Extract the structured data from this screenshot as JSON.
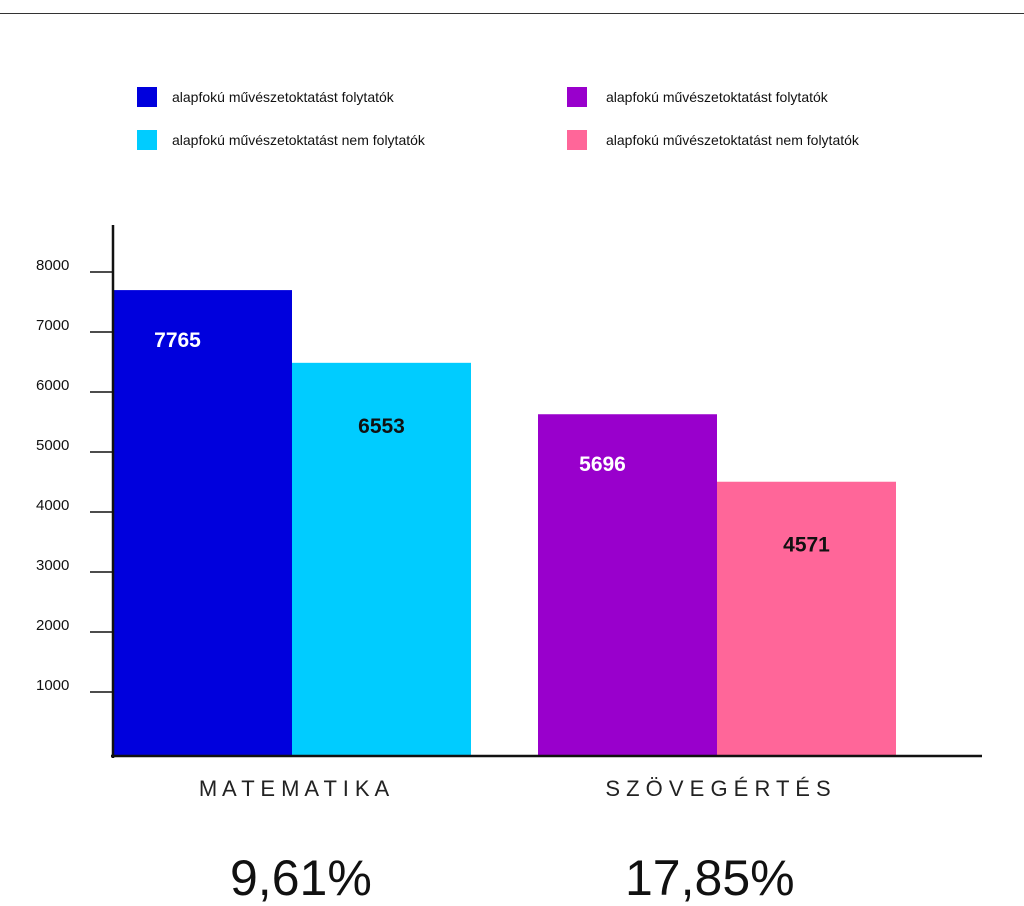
{
  "chart_data": {
    "type": "bar",
    "ylim": [
      0,
      8000
    ],
    "yticks": [
      "1000",
      "2000",
      "3000",
      "4000",
      "5000",
      "6000",
      "7000",
      "8000"
    ],
    "groups": [
      {
        "category": "M A T E M A T I K A",
        "share": "9,61%",
        "bars": [
          {
            "label": "alapfokú művészetoktatást folytatók",
            "value": 7765,
            "display": "7765",
            "color": "#0000dd",
            "text_color": "#ffffff"
          },
          {
            "label": "alapfokú művészetoktatást nem folytatók",
            "value": 6553,
            "display": "6553",
            "color": "#00ccff",
            "text_color": "#111111"
          }
        ]
      },
      {
        "category": "S Z Ö V E G É R T É S",
        "share": "17,85%",
        "bars": [
          {
            "label": "alapfokú művészetoktatást folytatók",
            "value": 5696,
            "display": "5696",
            "color": "#9900cc",
            "text_color": "#ffffff"
          },
          {
            "label": "alapfokú művészetoktatást nem folytatók",
            "value": 4571,
            "display": "4571",
            "color": "#ff6699",
            "text_color": "#111111"
          }
        ]
      }
    ],
    "legend": [
      {
        "label": "alapfokú művészetoktatást folytatók",
        "color": "#0000dd"
      },
      {
        "label": "alapfokú művészetoktatást nem folytatók",
        "color": "#00ccff"
      },
      {
        "label": "alapfokú művészetoktatást folytatók",
        "color": "#9900cc"
      },
      {
        "label": "alapfokú művészetoktatást nem folytatók",
        "color": "#ff6699"
      }
    ],
    "legend_position": "top",
    "grid": false
  }
}
